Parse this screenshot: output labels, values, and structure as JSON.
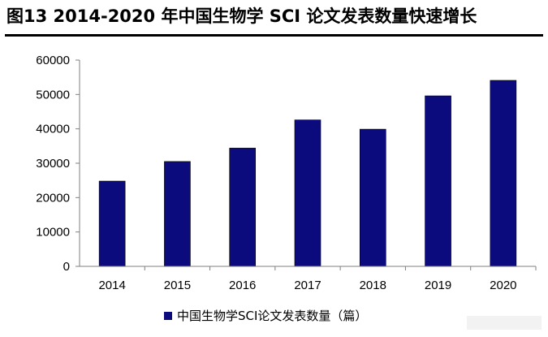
{
  "figure_title": "图13 2014-2020 年中国生物学 SCI 论文发表数量快速增长",
  "colors": {
    "bar": "#0b0b7d",
    "axis": "#7f7f7f"
  },
  "chart_data": {
    "type": "bar",
    "categories": [
      "2014",
      "2015",
      "2016",
      "2017",
      "2018",
      "2019",
      "2020"
    ],
    "series": [
      {
        "name": "中国生物学SCI论文发表数量（篇）",
        "values": [
          24800,
          30500,
          34400,
          42600,
          39900,
          49600,
          54100
        ]
      }
    ],
    "ylim": [
      0,
      60000
    ],
    "yticks": [
      0,
      10000,
      20000,
      30000,
      40000,
      50000,
      60000
    ],
    "ytick_labels": [
      "0",
      "10000",
      "20000",
      "30000",
      "40000",
      "50000",
      "60000"
    ],
    "grid": false,
    "legend_position": "bottom"
  }
}
